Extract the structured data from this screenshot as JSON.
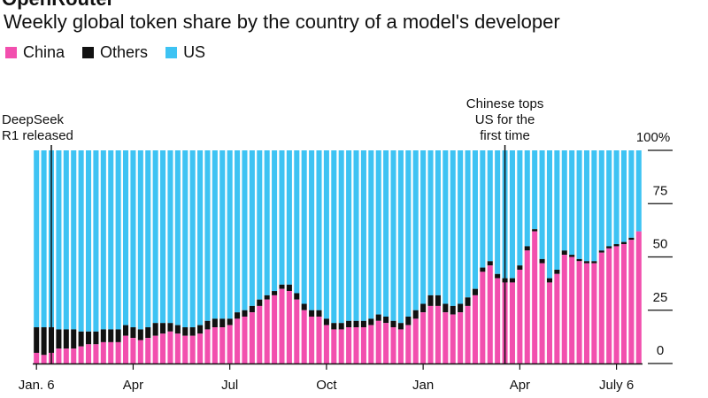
{
  "header": {
    "brand": "OpenRouter",
    "subtitle": "Weekly global token share by the country of a model's developer"
  },
  "colors": {
    "china": "#F24FAE",
    "others": "#111111",
    "us": "#3EC3F3"
  },
  "chart_data": {
    "type": "bar",
    "stacked": true,
    "series_order": [
      "China",
      "Others",
      "US"
    ],
    "legend": [
      {
        "name": "China",
        "color": "#F24FAE"
      },
      {
        "name": "Others",
        "color": "#111111"
      },
      {
        "name": "US",
        "color": "#3EC3F3"
      }
    ],
    "legend_position": "top-left",
    "x_tick_labels": [
      "Jan. 6",
      "Apr",
      "Jul",
      "Oct",
      "Jan",
      "Apr",
      "July 6"
    ],
    "x_tick_weeks": [
      0,
      13,
      26,
      39,
      52,
      65,
      78
    ],
    "y_tick_labels": [
      "0",
      "25",
      "50",
      "75",
      "100%"
    ],
    "y_ticks": [
      0,
      25,
      50,
      75,
      100
    ],
    "ylim": [
      0,
      100
    ],
    "y_axis_position": "right",
    "annotations": [
      {
        "lines": [
          "DeepSeek",
          "R1 released"
        ],
        "week": 2
      },
      {
        "lines": [
          "Chinese tops",
          "US for the",
          "first time"
        ],
        "week": 63
      }
    ],
    "china": [
      5,
      4,
      5,
      7,
      7,
      7,
      8,
      9,
      9,
      10,
      10,
      10,
      13,
      12,
      11,
      12,
      13,
      14,
      15,
      14,
      13,
      13,
      14,
      16,
      17,
      17,
      18,
      21,
      22,
      24,
      27,
      30,
      32,
      35,
      34,
      30,
      25,
      22,
      22,
      18,
      16,
      16,
      17,
      17,
      17,
      18,
      20,
      19,
      17,
      16,
      18,
      21,
      24,
      27,
      27,
      24,
      23,
      24,
      27,
      32,
      43,
      46,
      40,
      38,
      38,
      44,
      53,
      62,
      47,
      38,
      42,
      51,
      50,
      48,
      47,
      47,
      52,
      54,
      55,
      56,
      58,
      62
    ],
    "others": [
      12,
      13,
      12,
      9,
      9,
      9,
      7,
      6,
      6,
      6,
      6,
      6,
      5,
      5,
      5,
      5,
      6,
      5,
      4,
      4,
      4,
      4,
      4,
      4,
      4,
      4,
      3,
      3,
      3,
      3,
      3,
      2,
      2,
      2,
      3,
      3,
      3,
      3,
      3,
      3,
      3,
      3,
      3,
      3,
      3,
      3,
      3,
      3,
      3,
      3,
      4,
      4,
      4,
      5,
      5,
      4,
      4,
      4,
      4,
      3,
      2,
      2,
      2,
      2,
      2,
      2,
      2,
      1,
      2,
      2,
      2,
      2,
      1,
      1,
      1,
      1,
      1,
      1,
      1,
      1,
      1,
      0
    ]
  }
}
